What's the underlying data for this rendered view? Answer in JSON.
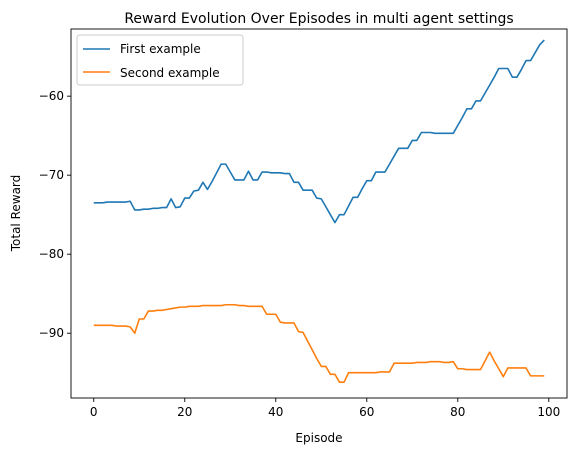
{
  "chart_data": {
    "type": "line",
    "title": "Reward Evolution Over Episodes in multi agent settings",
    "xlabel": "Episode",
    "ylabel": "Total Reward",
    "xlim": [
      -5,
      104
    ],
    "ylim": [
      -98.2,
      -51.5
    ],
    "xticks": [
      0,
      20,
      40,
      60,
      80,
      100
    ],
    "yticks": [
      -90,
      -80,
      -70,
      -60
    ],
    "grid": false,
    "legend_position": "top-left",
    "series": [
      {
        "name": "First example",
        "color": "#1f77b4",
        "x": [
          0,
          1,
          2,
          3,
          4,
          5,
          6,
          7,
          8,
          9,
          10,
          11,
          12,
          13,
          14,
          15,
          16,
          17,
          18,
          19,
          20,
          21,
          22,
          23,
          24,
          25,
          26,
          27,
          28,
          29,
          30,
          31,
          32,
          33,
          34,
          35,
          36,
          37,
          38,
          39,
          40,
          41,
          42,
          43,
          44,
          45,
          46,
          47,
          48,
          49,
          50,
          51,
          52,
          53,
          54,
          55,
          56,
          57,
          58,
          59,
          60,
          61,
          62,
          63,
          64,
          65,
          66,
          67,
          68,
          69,
          70,
          71,
          72,
          73,
          74,
          75,
          76,
          77,
          78,
          79,
          80,
          81,
          82,
          83,
          84,
          85,
          86,
          87,
          88,
          89,
          90,
          91,
          92,
          93,
          94,
          95,
          96,
          97,
          98,
          99
        ],
        "y": [
          -73.5,
          -73.5,
          -73.5,
          -73.4,
          -73.4,
          -73.4,
          -73.4,
          -73.4,
          -73.3,
          -74.4,
          -74.4,
          -74.3,
          -74.3,
          -74.2,
          -74.2,
          -74.1,
          -74.1,
          -73.0,
          -74.1,
          -74.0,
          -72.9,
          -72.9,
          -72.0,
          -71.9,
          -70.9,
          -71.8,
          -70.8,
          -69.7,
          -68.6,
          -68.6,
          -69.6,
          -70.6,
          -70.6,
          -70.6,
          -69.5,
          -70.6,
          -70.6,
          -69.6,
          -69.6,
          -69.7,
          -69.7,
          -69.7,
          -69.8,
          -69.8,
          -70.9,
          -70.9,
          -71.9,
          -71.9,
          -71.9,
          -72.9,
          -73.0,
          -74.0,
          -75.0,
          -76.0,
          -75.0,
          -75.0,
          -73.9,
          -72.8,
          -72.8,
          -71.7,
          -70.7,
          -70.7,
          -69.6,
          -69.6,
          -69.6,
          -68.6,
          -67.6,
          -66.6,
          -66.6,
          -66.6,
          -65.6,
          -65.6,
          -64.6,
          -64.6,
          -64.6,
          -64.7,
          -64.7,
          -64.7,
          -64.7,
          -64.7,
          -63.7,
          -62.7,
          -61.6,
          -61.6,
          -60.6,
          -60.6,
          -59.6,
          -58.6,
          -57.6,
          -56.5,
          -56.5,
          -56.5,
          -57.6,
          -57.6,
          -56.6,
          -55.5,
          -55.5,
          -54.5,
          -53.5,
          -52.9
        ]
      },
      {
        "name": "Second example",
        "color": "#ff7f0e",
        "x": [
          0,
          1,
          2,
          3,
          4,
          5,
          6,
          7,
          8,
          9,
          10,
          11,
          12,
          13,
          14,
          15,
          16,
          17,
          18,
          19,
          20,
          21,
          22,
          23,
          24,
          25,
          26,
          27,
          28,
          29,
          30,
          31,
          32,
          33,
          34,
          35,
          36,
          37,
          38,
          39,
          40,
          41,
          42,
          43,
          44,
          45,
          46,
          47,
          48,
          49,
          50,
          51,
          52,
          53,
          54,
          55,
          56,
          57,
          58,
          59,
          60,
          61,
          62,
          63,
          64,
          65,
          66,
          67,
          68,
          69,
          70,
          71,
          72,
          73,
          74,
          75,
          76,
          77,
          78,
          79,
          80,
          81,
          82,
          83,
          84,
          85,
          86,
          87,
          88,
          89,
          90,
          91,
          92,
          93,
          94,
          95,
          96,
          97,
          98,
          99
        ],
        "y": [
          -89.0,
          -89.0,
          -89.0,
          -89.0,
          -89.0,
          -89.1,
          -89.1,
          -89.1,
          -89.2,
          -90.0,
          -88.2,
          -88.2,
          -87.2,
          -87.2,
          -87.1,
          -87.1,
          -87.0,
          -86.9,
          -86.8,
          -86.7,
          -86.7,
          -86.6,
          -86.6,
          -86.6,
          -86.5,
          -86.5,
          -86.5,
          -86.5,
          -86.5,
          -86.4,
          -86.4,
          -86.4,
          -86.5,
          -86.5,
          -86.6,
          -86.6,
          -86.6,
          -86.6,
          -87.6,
          -87.6,
          -87.6,
          -88.6,
          -88.7,
          -88.7,
          -88.7,
          -89.8,
          -89.9,
          -91.0,
          -92.1,
          -93.2,
          -94.2,
          -94.2,
          -95.2,
          -95.2,
          -96.2,
          -96.2,
          -95.0,
          -95.0,
          -95.0,
          -95.0,
          -95.0,
          -95.0,
          -95.0,
          -94.9,
          -94.9,
          -94.9,
          -93.8,
          -93.8,
          -93.8,
          -93.8,
          -93.8,
          -93.7,
          -93.7,
          -93.7,
          -93.6,
          -93.6,
          -93.6,
          -93.7,
          -93.7,
          -93.6,
          -94.5,
          -94.5,
          -94.6,
          -94.6,
          -94.6,
          -94.6,
          -93.5,
          -92.4,
          -93.5,
          -94.5,
          -95.5,
          -94.4,
          -94.4,
          -94.4,
          -94.4,
          -94.4,
          -95.4,
          -95.4,
          -95.4,
          -95.4
        ]
      }
    ]
  }
}
